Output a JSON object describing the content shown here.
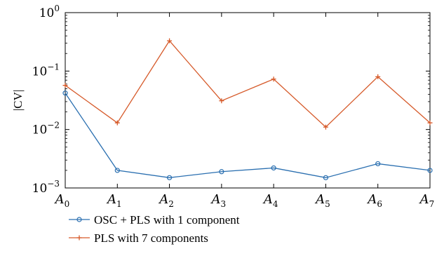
{
  "chart_data": {
    "type": "line",
    "categories": [
      {
        "base": "A",
        "sub": "0"
      },
      {
        "base": "A",
        "sub": "1"
      },
      {
        "base": "A",
        "sub": "2"
      },
      {
        "base": "A",
        "sub": "3"
      },
      {
        "base": "A",
        "sub": "4"
      },
      {
        "base": "A",
        "sub": "5"
      },
      {
        "base": "A",
        "sub": "6"
      },
      {
        "base": "A",
        "sub": "7"
      }
    ],
    "ylabel": "|CV|",
    "yscale": "log",
    "ylim": [
      0.001,
      1
    ],
    "yticks": [
      {
        "base": "10",
        "exp": "0",
        "value": 1
      },
      {
        "base": "10",
        "exp": "−1",
        "value": 0.1
      },
      {
        "base": "10",
        "exp": "−2",
        "value": 0.01
      },
      {
        "base": "10",
        "exp": "−3",
        "value": 0.001
      }
    ],
    "grid": false,
    "legend_position": "bottom-left, below plot",
    "series": [
      {
        "name": "OSC + PLS with 1 component",
        "color": "#2a6fb0",
        "marker": "circle",
        "values": [
          0.042,
          0.002,
          0.0015,
          0.0019,
          0.0022,
          0.0015,
          0.0026,
          0.002
        ]
      },
      {
        "name": "PLS with 7 components",
        "color": "#d65a2a",
        "marker": "plus",
        "values": [
          0.057,
          0.013,
          0.33,
          0.031,
          0.073,
          0.011,
          0.08,
          0.013
        ]
      }
    ]
  }
}
